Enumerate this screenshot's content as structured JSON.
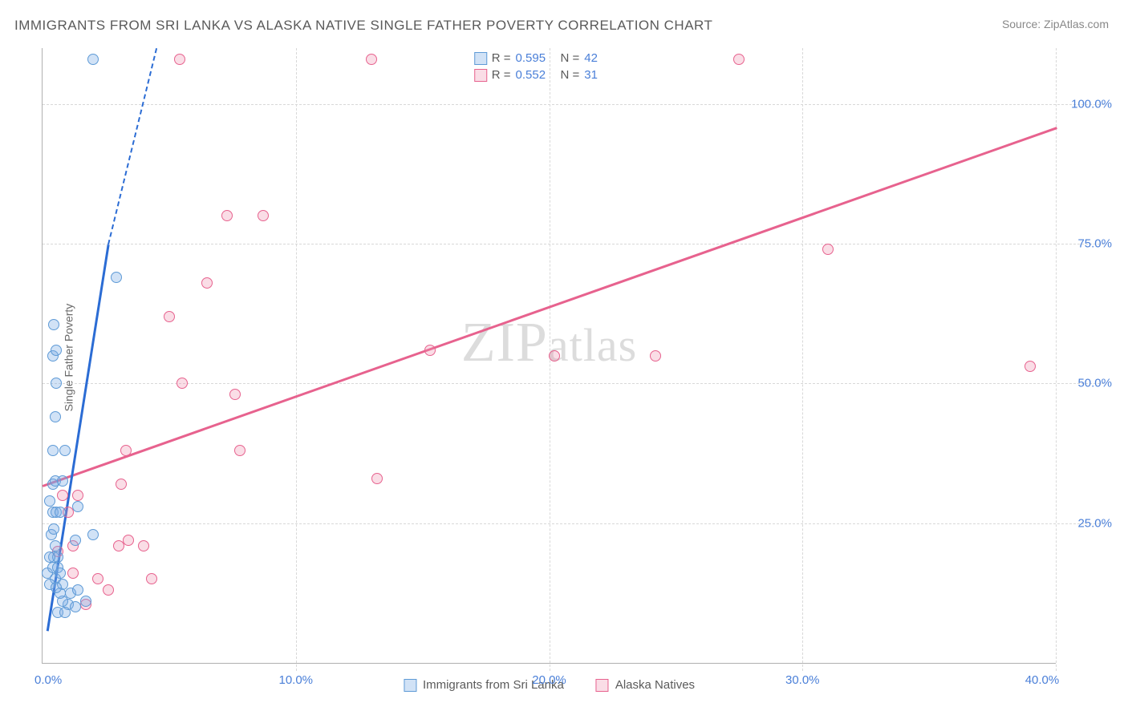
{
  "title": "IMMIGRANTS FROM SRI LANKA VS ALASKA NATIVE SINGLE FATHER POVERTY CORRELATION CHART",
  "source_label": "Source: ",
  "source_name": "ZipAtlas.com",
  "y_axis_label": "Single Father Poverty",
  "watermark": {
    "pre": "ZIP",
    "post": "atlas"
  },
  "chart": {
    "type": "scatter",
    "xlim": [
      0,
      40
    ],
    "ylim": [
      0,
      110
    ],
    "x_ticks": [
      0,
      10,
      20,
      30,
      40
    ],
    "x_tick_labels": [
      "0.0%",
      "10.0%",
      "20.0%",
      "30.0%",
      "40.0%"
    ],
    "y_ticks": [
      25,
      50,
      75,
      100
    ],
    "y_tick_labels": [
      "25.0%",
      "50.0%",
      "75.0%",
      "100.0%"
    ],
    "grid_color": "#d8d8d8",
    "axis_color": "#b0b0b0",
    "tick_label_color": "#4a7fd8",
    "background_color": "#ffffff",
    "marker_radius": 7,
    "marker_stroke_width": 1.5,
    "series": [
      {
        "id": "srilanka",
        "label": "Immigrants from Sri Lanka",
        "color_fill": "rgba(122,173,230,0.35)",
        "color_stroke": "#5e9ad6",
        "line_color": "#2b6cd4",
        "R": "0.595",
        "N": "42",
        "trend": {
          "x1": 0.2,
          "y1": 6,
          "x2": 2.6,
          "y2": 75,
          "dash_to_x": 4.5,
          "dash_to_y": 110
        },
        "points": [
          [
            0.2,
            16
          ],
          [
            0.4,
            17
          ],
          [
            0.5,
            15
          ],
          [
            0.6,
            17
          ],
          [
            0.7,
            16
          ],
          [
            0.3,
            14
          ],
          [
            0.8,
            14
          ],
          [
            0.45,
            19
          ],
          [
            0.6,
            19
          ],
          [
            0.5,
            21
          ],
          [
            0.35,
            23
          ],
          [
            0.4,
            27
          ],
          [
            0.55,
            27
          ],
          [
            0.7,
            27
          ],
          [
            0.3,
            29
          ],
          [
            0.4,
            32
          ],
          [
            0.5,
            32.5
          ],
          [
            0.8,
            32.5
          ],
          [
            0.4,
            38
          ],
          [
            0.9,
            38
          ],
          [
            0.5,
            44
          ],
          [
            0.55,
            50
          ],
          [
            0.4,
            55
          ],
          [
            0.55,
            56
          ],
          [
            0.45,
            60.5
          ],
          [
            2.9,
            69
          ],
          [
            2.0,
            23
          ],
          [
            1.3,
            22
          ],
          [
            1.7,
            11
          ],
          [
            1.0,
            10.5
          ],
          [
            1.3,
            10
          ],
          [
            1.1,
            12.5
          ],
          [
            1.4,
            13
          ],
          [
            2.0,
            108
          ],
          [
            0.6,
            9
          ],
          [
            0.9,
            9
          ],
          [
            0.8,
            11
          ],
          [
            0.7,
            12.5
          ],
          [
            0.55,
            13.5
          ],
          [
            1.4,
            28
          ],
          [
            0.3,
            19
          ],
          [
            0.45,
            24
          ]
        ]
      },
      {
        "id": "alaska",
        "label": "Alaska Natives",
        "color_fill": "rgba(238,142,172,0.30)",
        "color_stroke": "#e7628e",
        "line_color": "#e7628e",
        "R": "0.552",
        "N": "31",
        "trend": {
          "x1": 0,
          "y1": 32,
          "x2": 40,
          "y2": 96
        },
        "points": [
          [
            5.4,
            108
          ],
          [
            13.0,
            108
          ],
          [
            27.5,
            108
          ],
          [
            7.3,
            80
          ],
          [
            8.7,
            80
          ],
          [
            6.5,
            68
          ],
          [
            5.0,
            62
          ],
          [
            15.3,
            56
          ],
          [
            20.2,
            55
          ],
          [
            24.2,
            55
          ],
          [
            39.0,
            53
          ],
          [
            5.5,
            50
          ],
          [
            7.6,
            48
          ],
          [
            3.3,
            38
          ],
          [
            7.8,
            38
          ],
          [
            13.2,
            33
          ],
          [
            3.1,
            32
          ],
          [
            31.0,
            74
          ],
          [
            1.0,
            27
          ],
          [
            1.2,
            21
          ],
          [
            1.4,
            30
          ],
          [
            3.0,
            21
          ],
          [
            3.4,
            22
          ],
          [
            2.2,
            15
          ],
          [
            2.6,
            13
          ],
          [
            4.3,
            15
          ],
          [
            4.0,
            21
          ],
          [
            1.7,
            10.5
          ],
          [
            1.2,
            16
          ],
          [
            0.6,
            20
          ],
          [
            0.8,
            30
          ]
        ]
      }
    ]
  },
  "legend_top_prefix_R": "R =",
  "legend_top_prefix_N": "N ="
}
